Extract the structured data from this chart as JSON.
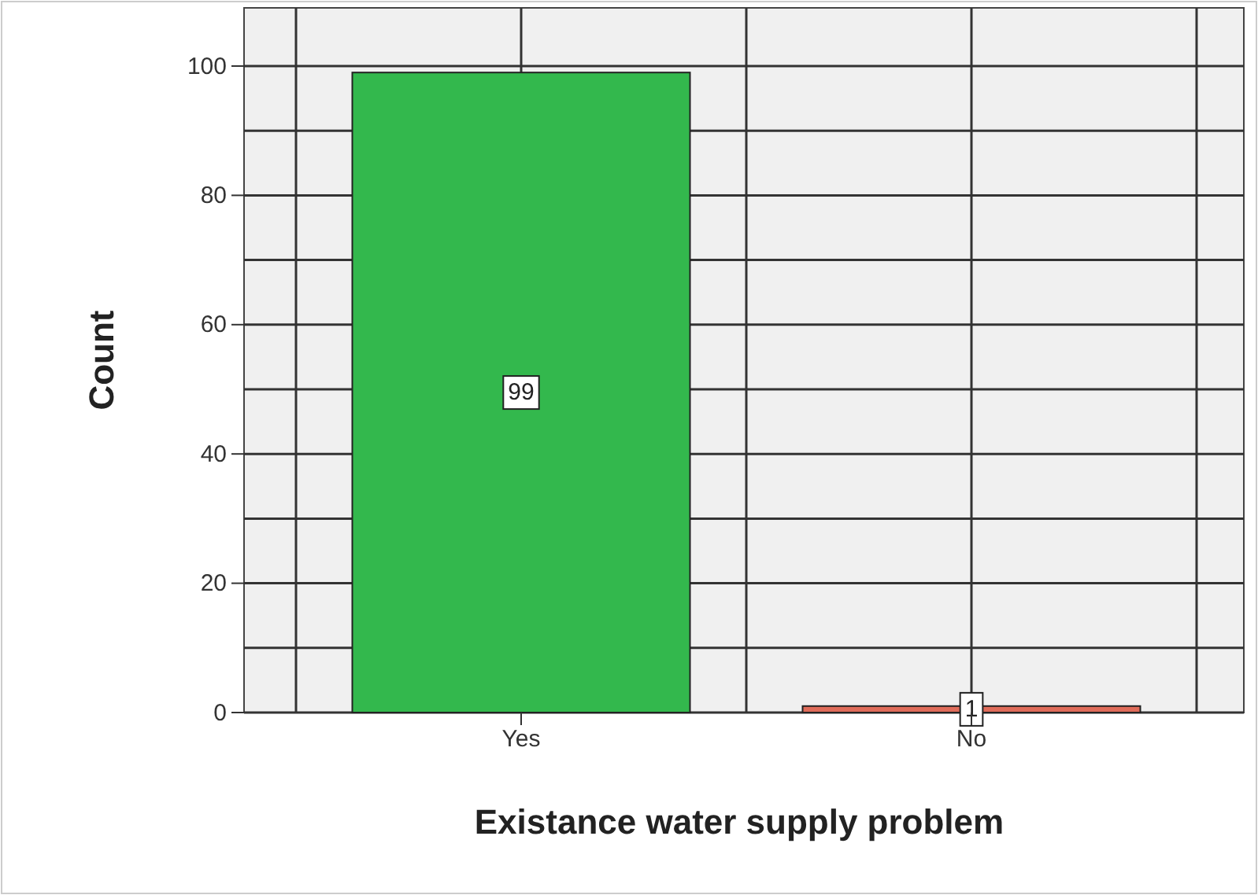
{
  "chart_data": {
    "type": "bar",
    "xlabel": "Existance water supply problem",
    "ylabel": "Count",
    "categories": [
      "Yes",
      "No"
    ],
    "values": [
      99,
      1
    ],
    "colors": [
      "#33b84d",
      "#e06c5a"
    ],
    "ylim": [
      0,
      109
    ],
    "yticks": [
      0,
      {
        "value": 10,
        "label": null
      },
      20,
      {
        "value": 30,
        "label": null
      },
      40,
      {
        "value": 50,
        "label": null
      },
      60,
      {
        "value": 70,
        "label": null
      },
      80,
      {
        "value": 90,
        "label": null
      },
      100
    ],
    "grid": true,
    "data_labels": true
  }
}
